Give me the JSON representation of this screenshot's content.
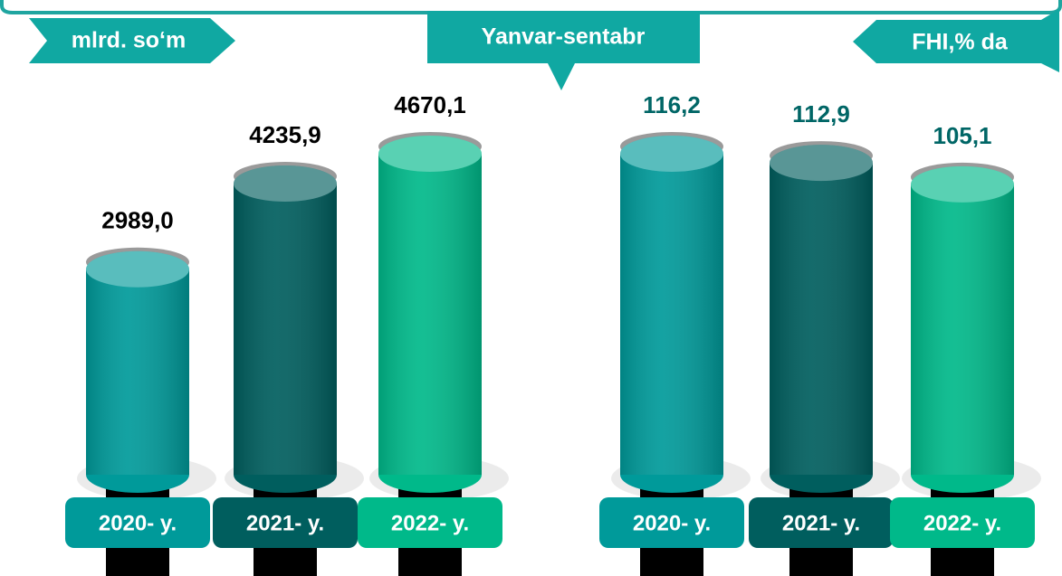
{
  "title": "Yanvar-sentabr",
  "chart_data": [
    {
      "type": "bar",
      "unit_label": "mlrd. so‘m",
      "categories": [
        "2020- y.",
        "2021- y.",
        "2022- y."
      ],
      "values": [
        2989.0,
        4235.9,
        4670.1
      ],
      "value_labels": [
        "2989,0",
        "4235,9",
        "4670,1"
      ],
      "colors": [
        "#009a9a",
        "#005e5e",
        "#00b98a"
      ],
      "label_color": "#000000"
    },
    {
      "type": "bar",
      "unit_label": "FHI,% da",
      "categories": [
        "2020- y.",
        "2021- y.",
        "2022- y."
      ],
      "values": [
        116.2,
        112.9,
        105.1
      ],
      "value_labels": [
        "116,2",
        "112,9",
        "105,1"
      ],
      "colors": [
        "#009a9a",
        "#005e5e",
        "#00b98a"
      ],
      "label_color": "#006666"
    }
  ]
}
